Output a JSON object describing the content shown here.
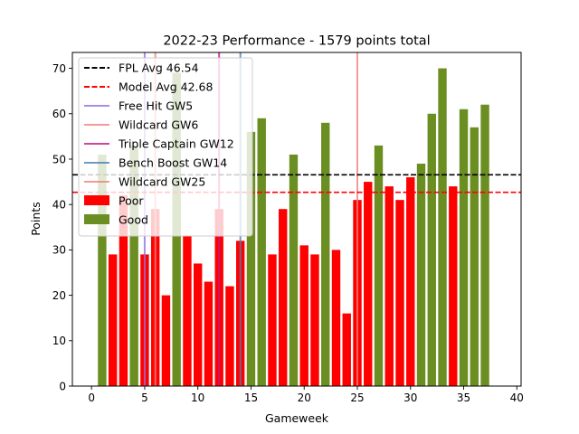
{
  "chart_data": {
    "type": "bar",
    "title": "2022-23 Performance - 1579 points total",
    "xlabel": "Gameweek",
    "ylabel": "Points",
    "xlim": [
      -1.8,
      40.4
    ],
    "ylim": [
      0,
      73.5
    ],
    "xticks": [
      0,
      5,
      10,
      15,
      20,
      25,
      30,
      35,
      40
    ],
    "yticks": [
      0,
      10,
      20,
      30,
      40,
      50,
      60,
      70
    ],
    "grid": false,
    "legend_position": "upper-left",
    "series": [
      {
        "name": "Poor",
        "color": "#ff0000",
        "points": [
          {
            "x": 2,
            "y": 29
          },
          {
            "x": 3,
            "y": 42
          },
          {
            "x": 5,
            "y": 29
          },
          {
            "x": 6,
            "y": 39
          },
          {
            "x": 7,
            "y": 20
          },
          {
            "x": 9,
            "y": 33
          },
          {
            "x": 10,
            "y": 27
          },
          {
            "x": 11,
            "y": 23
          },
          {
            "x": 12,
            "y": 39
          },
          {
            "x": 13,
            "y": 22
          },
          {
            "x": 14,
            "y": 32
          },
          {
            "x": 17,
            "y": 29
          },
          {
            "x": 18,
            "y": 39
          },
          {
            "x": 20,
            "y": 31
          },
          {
            "x": 21,
            "y": 29
          },
          {
            "x": 23,
            "y": 30
          },
          {
            "x": 24,
            "y": 16
          },
          {
            "x": 25,
            "y": 41
          },
          {
            "x": 26,
            "y": 45
          },
          {
            "x": 28,
            "y": 44
          },
          {
            "x": 29,
            "y": 41
          },
          {
            "x": 30,
            "y": 46
          },
          {
            "x": 34,
            "y": 44
          }
        ]
      },
      {
        "name": "Good",
        "color": "#6b8e23",
        "points": [
          {
            "x": 1,
            "y": 51
          },
          {
            "x": 4,
            "y": 53
          },
          {
            "x": 8,
            "y": 69
          },
          {
            "x": 15,
            "y": 56
          },
          {
            "x": 16,
            "y": 59
          },
          {
            "x": 19,
            "y": 51
          },
          {
            "x": 22,
            "y": 58
          },
          {
            "x": 27,
            "y": 53
          },
          {
            "x": 31,
            "y": 49
          },
          {
            "x": 32,
            "y": 60
          },
          {
            "x": 33,
            "y": 70
          },
          {
            "x": 35,
            "y": 61
          },
          {
            "x": 36,
            "y": 57
          },
          {
            "x": 37,
            "y": 62
          }
        ]
      }
    ],
    "hlines": [
      {
        "name": "FPL Avg 46.54",
        "y": 46.54,
        "color": "#000000",
        "style": "dashed"
      },
      {
        "name": "Model Avg 42.68",
        "y": 42.68,
        "color": "#ff0000",
        "style": "dashed"
      }
    ],
    "vlines": [
      {
        "name": "Free Hit GW5",
        "x": 5,
        "color": "#9370db"
      },
      {
        "name": "Wildcard GW6",
        "x": 6,
        "color": "#f08080"
      },
      {
        "name": "Triple Captain GW12",
        "x": 12,
        "color": "#c71585"
      },
      {
        "name": "Bench Boost GW14",
        "x": 14,
        "color": "#4682b4"
      },
      {
        "name": "Wildcard GW25",
        "x": 25,
        "color": "#f08080"
      }
    ]
  }
}
